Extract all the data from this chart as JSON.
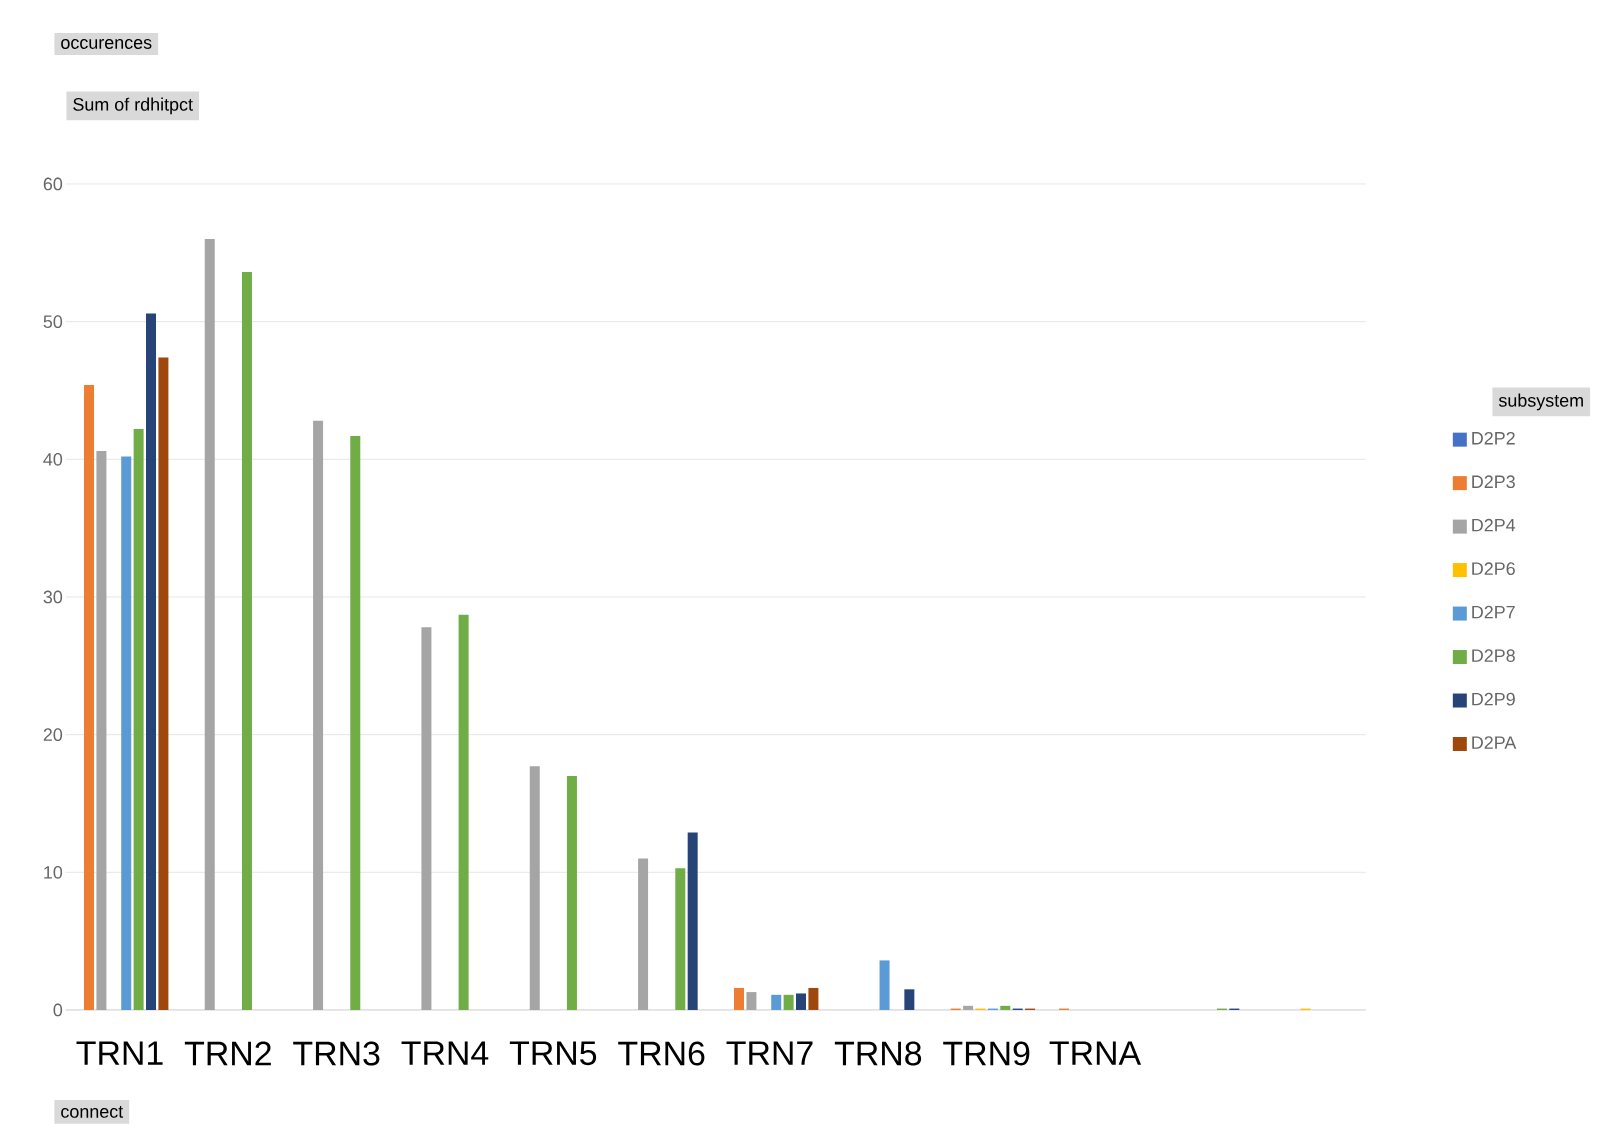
{
  "chart_data": {
    "type": "bar",
    "ylabel": "Sum of rdhitpct",
    "legend_title": "subsystem",
    "annotations": [
      "occurences",
      "connect"
    ],
    "categories": [
      "TRN1",
      "TRN2",
      "TRN3",
      "TRN4",
      "TRN5",
      "TRN6",
      "TRN7",
      "TRN8",
      "TRN9",
      "TRNA",
      null,
      null
    ],
    "series": [
      {
        "name": "D2P2",
        "color": "#4472c4",
        "values": [
          null,
          null,
          null,
          null,
          null,
          null,
          null,
          null,
          null,
          null,
          null,
          null
        ]
      },
      {
        "name": "D2P3",
        "color": "#ed7d31",
        "values": [
          45.4,
          null,
          null,
          null,
          null,
          null,
          1.6,
          null,
          0.1,
          0.1,
          null,
          null
        ]
      },
      {
        "name": "D2P4",
        "color": "#a5a5a5",
        "values": [
          40.6,
          56,
          42.8,
          27.8,
          17.7,
          11,
          1.3,
          null,
          0.3,
          null,
          null,
          null
        ]
      },
      {
        "name": "D2P6",
        "color": "#ffc000",
        "values": [
          null,
          null,
          null,
          null,
          null,
          null,
          null,
          null,
          0.1,
          null,
          null,
          0.1
        ]
      },
      {
        "name": "D2P7",
        "color": "#5b9bd5",
        "values": [
          40.2,
          null,
          null,
          null,
          null,
          null,
          1.1,
          3.6,
          0.1,
          null,
          null,
          null
        ]
      },
      {
        "name": "D2P8",
        "color": "#70ad47",
        "values": [
          42.2,
          53.6,
          41.7,
          28.7,
          17,
          10.3,
          1.1,
          null,
          0.3,
          null,
          0.1,
          null
        ]
      },
      {
        "name": "D2P9",
        "color": "#264478",
        "values": [
          50.6,
          null,
          null,
          null,
          null,
          12.9,
          1.2,
          1.5,
          0.1,
          null,
          0.1,
          null
        ]
      },
      {
        "name": "D2PA",
        "color": "#9e480e",
        "values": [
          47.4,
          null,
          null,
          null,
          null,
          null,
          1.6,
          null,
          0.1,
          null,
          null,
          null
        ]
      }
    ],
    "ylim": [
      0,
      60
    ],
    "yticks": [
      0,
      10,
      20,
      30,
      40,
      50,
      60
    ],
    "grid": "y",
    "legend": "right"
  }
}
